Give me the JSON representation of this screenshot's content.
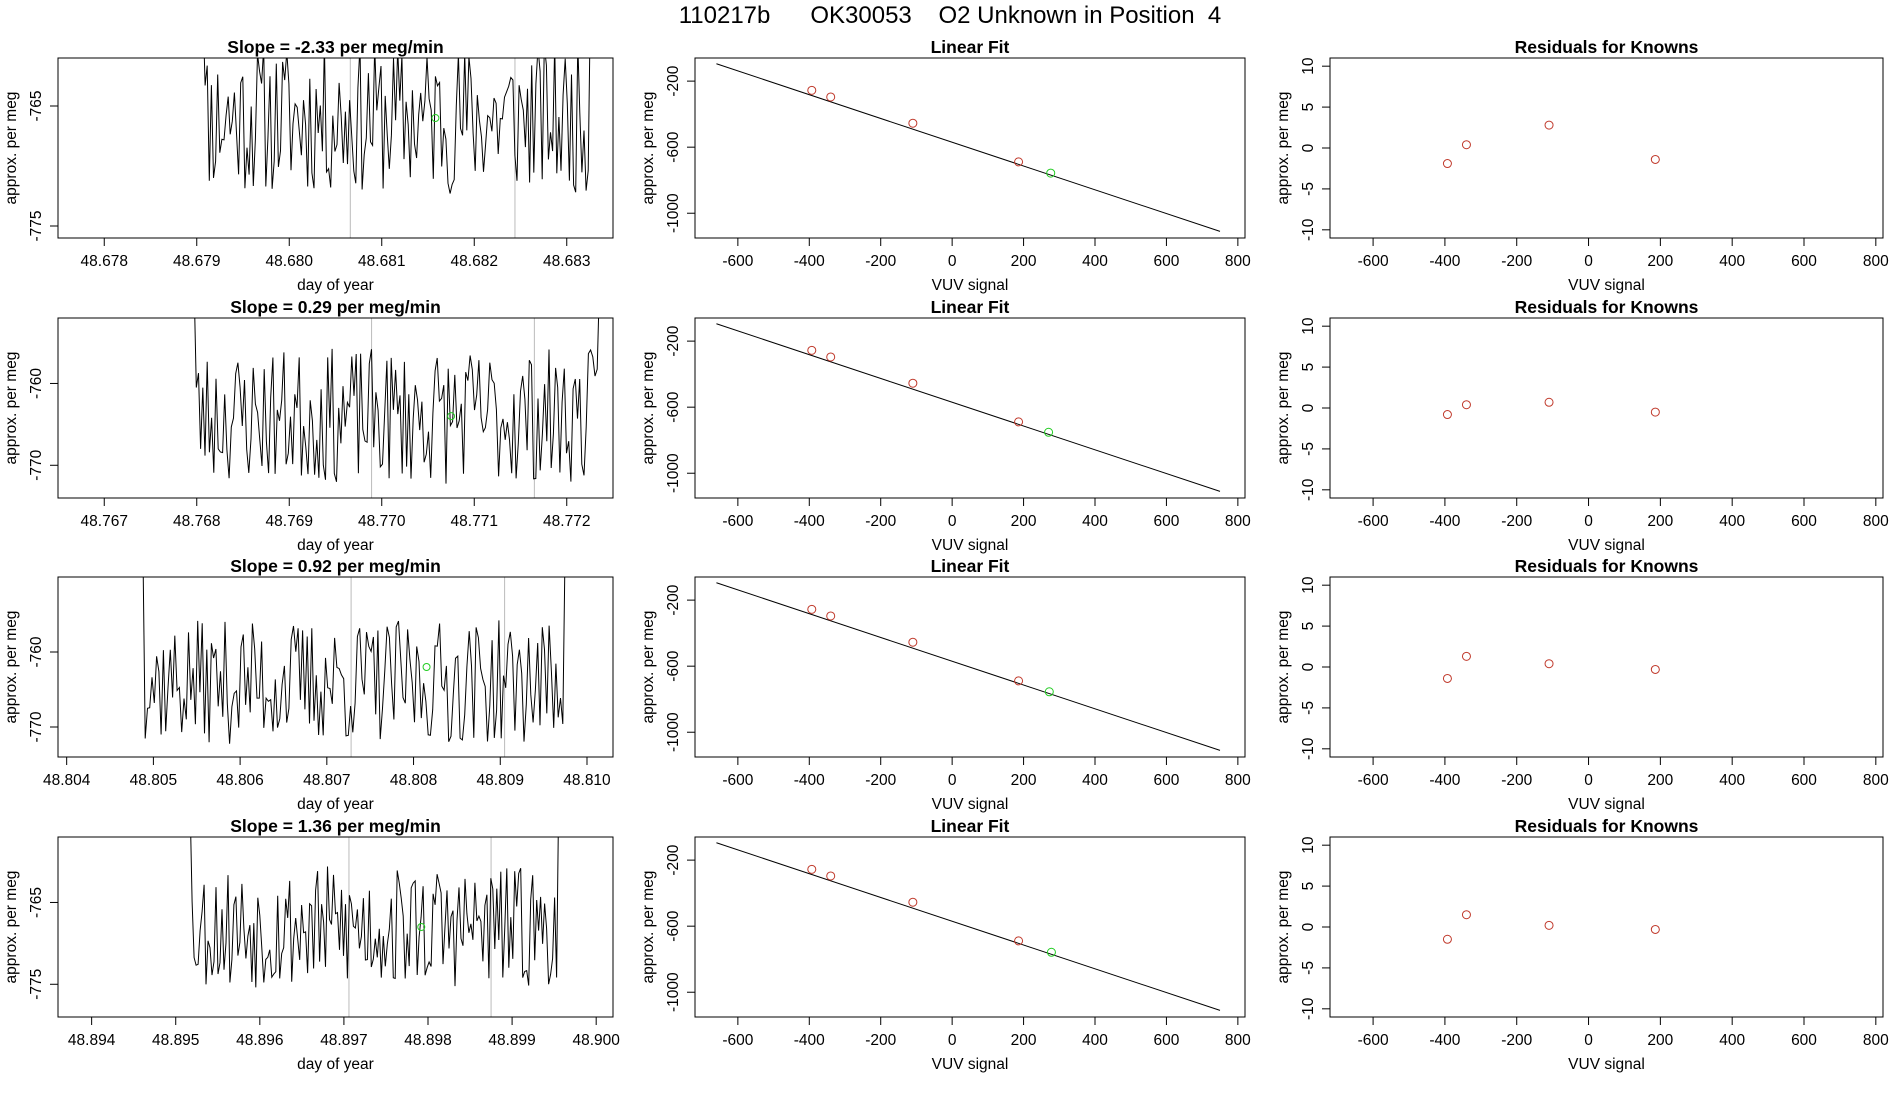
{
  "page_title": "110217b      OK30053    O2 Unknown in Position  4",
  "colors": {
    "series": "#000000",
    "known": "#c0392b",
    "unknown": "#22cc22",
    "vline": "#bbbbbb",
    "axis": "#000000"
  },
  "chart_data": [
    {
      "type": "line",
      "title": "Slope =  -2.33  per meg/min",
      "xlabel": "day of year",
      "ylabel": "approx. per meg",
      "xlim": [
        48.6775,
        48.6835
      ],
      "ylim": [
        -776,
        -761
      ],
      "xticks": [
        "48.678",
        "48.679",
        "48.680",
        "48.681",
        "48.682",
        "48.683"
      ],
      "yticks": [
        "-765",
        "-775"
      ],
      "t0": 48.679,
      "t1": 48.6833,
      "center": -766,
      "amp": 4.2,
      "seed": 11,
      "vlines": [
        48.68066,
        48.68244
      ],
      "unknown_point": [
        48.68158,
        -766
      ]
    },
    {
      "type": "scatter",
      "title": "Linear Fit",
      "xlabel": "VUV signal",
      "ylabel": "approx. per meg",
      "xlim": [
        -720,
        820
      ],
      "ylim": [
        -1150,
        -60
      ],
      "xticks": [
        "-600",
        "-400",
        "-200",
        "0",
        "200",
        "400",
        "600",
        "800"
      ],
      "yticks": [
        "-200",
        "-600",
        "-1000"
      ],
      "fit_line": [
        [
          -660,
          -95
        ],
        [
          750,
          -1110
        ]
      ],
      "knowns": [
        [
          -393,
          -256
        ],
        [
          -340,
          -296
        ],
        [
          -110,
          -455
        ],
        [
          186,
          -689
        ]
      ],
      "unknown": [
        276,
        -757
      ]
    },
    {
      "type": "scatter",
      "title": "Residuals for Knowns",
      "xlabel": "VUV signal",
      "ylabel": "approx. per meg",
      "xlim": [
        -720,
        820
      ],
      "ylim": [
        -11,
        11
      ],
      "xticks": [
        "-600",
        "-400",
        "-200",
        "0",
        "200",
        "400",
        "600",
        "800"
      ],
      "yticks": [
        "-10",
        "-5",
        "0",
        "5",
        "10"
      ],
      "points": [
        [
          -393,
          -1.9
        ],
        [
          -340,
          0.4
        ],
        [
          -110,
          2.8
        ],
        [
          186,
          -1.4
        ]
      ]
    },
    {
      "type": "line",
      "title": "Slope =  0.29  per meg/min",
      "xlabel": "day of year",
      "ylabel": "approx. per meg",
      "xlim": [
        48.7665,
        48.7725
      ],
      "ylim": [
        -774,
        -752
      ],
      "xticks": [
        "48.767",
        "48.768",
        "48.769",
        "48.770",
        "48.771",
        "48.772"
      ],
      "yticks": [
        "-760",
        "-770"
      ],
      "t0": 48.7679,
      "t1": 48.7724,
      "center": -764,
      "amp": 5.5,
      "seed": 23,
      "vlines": [
        48.76989,
        48.77165
      ],
      "unknown_point": [
        48.77075,
        -764
      ]
    },
    {
      "type": "scatter",
      "title": "Linear Fit",
      "xlabel": "VUV signal",
      "ylabel": "approx. per meg",
      "xlim": [
        -720,
        820
      ],
      "ylim": [
        -1150,
        -60
      ],
      "xticks": [
        "-600",
        "-400",
        "-200",
        "0",
        "200",
        "400",
        "600",
        "800"
      ],
      "yticks": [
        "-200",
        "-600",
        "-1000"
      ],
      "fit_line": [
        [
          -660,
          -95
        ],
        [
          750,
          -1110
        ]
      ],
      "knowns": [
        [
          -393,
          -256
        ],
        [
          -340,
          -296
        ],
        [
          -110,
          -455
        ],
        [
          186,
          -689
        ]
      ],
      "unknown": [
        270,
        -752
      ]
    },
    {
      "type": "scatter",
      "title": "Residuals for Knowns",
      "xlabel": "VUV signal",
      "ylabel": "approx. per meg",
      "xlim": [
        -720,
        820
      ],
      "ylim": [
        -11,
        11
      ],
      "xticks": [
        "-600",
        "-400",
        "-200",
        "0",
        "200",
        "400",
        "600",
        "800"
      ],
      "yticks": [
        "-10",
        "-5",
        "0",
        "5",
        "10"
      ],
      "points": [
        [
          -393,
          -0.8
        ],
        [
          -340,
          0.4
        ],
        [
          -110,
          0.7
        ],
        [
          186,
          -0.5
        ]
      ]
    },
    {
      "type": "line",
      "title": "Slope =  0.92  per meg/min",
      "xlabel": "day of year",
      "ylabel": "approx. per meg",
      "xlim": [
        48.8039,
        48.8103
      ],
      "ylim": [
        -774,
        -750
      ],
      "xticks": [
        "48.804",
        "48.805",
        "48.806",
        "48.807",
        "48.808",
        "48.809",
        "48.810"
      ],
      "yticks": [
        "-760",
        "-770"
      ],
      "t0": 48.8048,
      "t1": 48.8098,
      "center": -764,
      "amp": 5.5,
      "seed": 37,
      "vlines": [
        48.80728,
        48.80905
      ],
      "unknown_point": [
        48.80815,
        -762
      ]
    },
    {
      "type": "scatter",
      "title": "Linear Fit",
      "xlabel": "VUV signal",
      "ylabel": "approx. per meg",
      "xlim": [
        -720,
        820
      ],
      "ylim": [
        -1150,
        -60
      ],
      "xticks": [
        "-600",
        "-400",
        "-200",
        "0",
        "200",
        "400",
        "600",
        "800"
      ],
      "yticks": [
        "-200",
        "-600",
        "-1000"
      ],
      "fit_line": [
        [
          -660,
          -95
        ],
        [
          750,
          -1110
        ]
      ],
      "knowns": [
        [
          -393,
          -256
        ],
        [
          -340,
          -296
        ],
        [
          -110,
          -455
        ],
        [
          186,
          -689
        ]
      ],
      "unknown": [
        272,
        -755
      ]
    },
    {
      "type": "scatter",
      "title": "Residuals for Knowns",
      "xlabel": "VUV signal",
      "ylabel": "approx. per meg",
      "xlim": [
        -720,
        820
      ],
      "ylim": [
        -11,
        11
      ],
      "xticks": [
        "-600",
        "-400",
        "-200",
        "0",
        "200",
        "400",
        "600",
        "800"
      ],
      "yticks": [
        "-10",
        "-5",
        "0",
        "5",
        "10"
      ],
      "points": [
        [
          -393,
          -1.4
        ],
        [
          -340,
          1.3
        ],
        [
          -110,
          0.4
        ],
        [
          186,
          -0.3
        ]
      ]
    },
    {
      "type": "line",
      "title": "Slope =  1.36  per meg/min",
      "xlabel": "day of year",
      "ylabel": "approx. per meg",
      "xlim": [
        48.8936,
        48.9002
      ],
      "ylim": [
        -779,
        -757
      ],
      "xticks": [
        "48.894",
        "48.895",
        "48.896",
        "48.897",
        "48.898",
        "48.899",
        "48.900"
      ],
      "yticks": [
        "-765",
        "-775"
      ],
      "t0": 48.8951,
      "t1": 48.8996,
      "center": -768,
      "amp": 5.0,
      "seed": 53,
      "vlines": [
        48.89706,
        48.89875
      ],
      "unknown_point": [
        48.89792,
        -768
      ]
    },
    {
      "type": "scatter",
      "title": "Linear Fit",
      "xlabel": "VUV signal",
      "ylabel": "approx. per meg",
      "xlim": [
        -720,
        820
      ],
      "ylim": [
        -1150,
        -60
      ],
      "xticks": [
        "-600",
        "-400",
        "-200",
        "0",
        "200",
        "400",
        "600",
        "800"
      ],
      "yticks": [
        "-200",
        "-600",
        "-1000"
      ],
      "fit_line": [
        [
          -660,
          -95
        ],
        [
          750,
          -1110
        ]
      ],
      "knowns": [
        [
          -393,
          -256
        ],
        [
          -340,
          -296
        ],
        [
          -110,
          -455
        ],
        [
          186,
          -689
        ]
      ],
      "unknown": [
        278,
        -758
      ]
    },
    {
      "type": "scatter",
      "title": "Residuals for Knowns",
      "xlabel": "VUV signal",
      "ylabel": "approx. per meg",
      "xlim": [
        -720,
        820
      ],
      "ylim": [
        -11,
        11
      ],
      "xticks": [
        "-600",
        "-400",
        "-200",
        "0",
        "200",
        "400",
        "600",
        "800"
      ],
      "yticks": [
        "-10",
        "-5",
        "0",
        "5",
        "10"
      ],
      "points": [
        [
          -393,
          -1.5
        ],
        [
          -340,
          1.5
        ],
        [
          -110,
          0.2
        ],
        [
          186,
          -0.3
        ]
      ]
    }
  ]
}
